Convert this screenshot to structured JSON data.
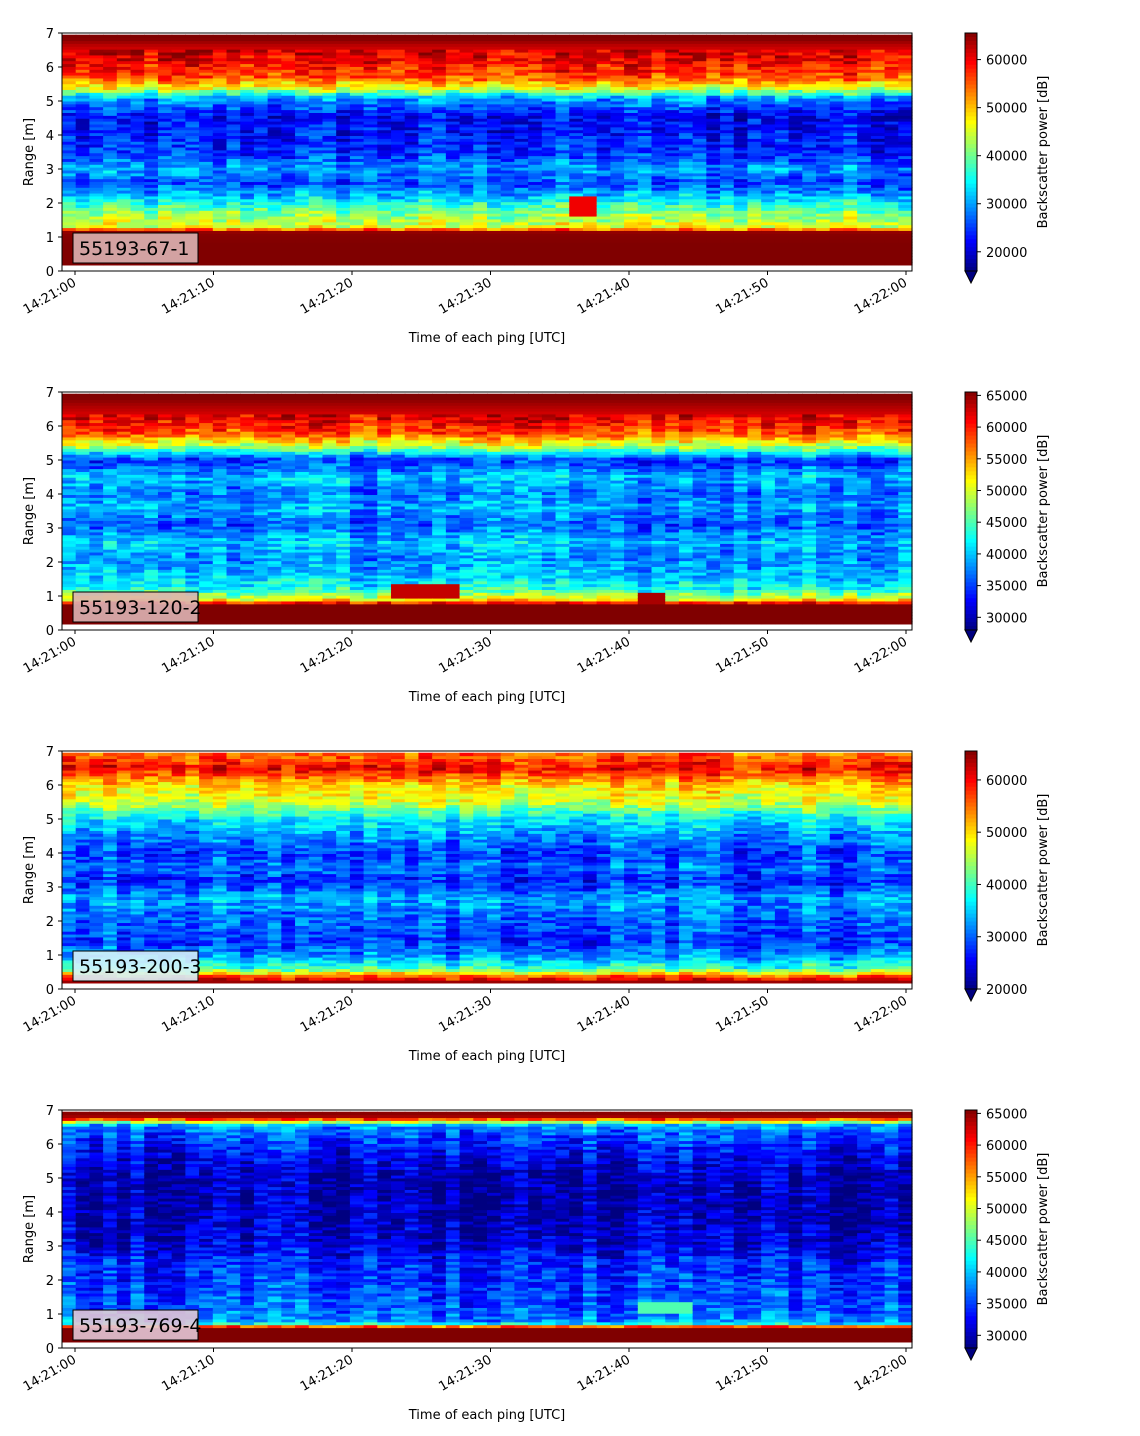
{
  "chart_data": [
    {
      "type": "heatmap",
      "label": "55193-67-1",
      "xlabel": "Time of each ping [UTC]",
      "ylabel": "Range [m]",
      "colorbar_label": "Backscatter power [dB]",
      "x_ticks": [
        "14:21:00",
        "14:21:10",
        "14:21:20",
        "14:21:30",
        "14:21:40",
        "14:21:50",
        "14:22:00"
      ],
      "y_ticks": [
        0,
        1,
        2,
        3,
        4,
        5,
        6,
        7
      ],
      "ylim": [
        0,
        7
      ],
      "clim": [
        16000,
        65535
      ],
      "colorbar_ticks": [
        20000,
        30000,
        40000,
        50000,
        60000
      ],
      "colormap": "jet",
      "label_box_color": "#dbb4b4",
      "profile": [
        {
          "range": 0.25,
          "value": 65535
        },
        {
          "range": 0.8,
          "value": 65535
        },
        {
          "range": 1.15,
          "value": 65000
        },
        {
          "range": 1.3,
          "value": 46000
        },
        {
          "range": 1.7,
          "value": 41000
        },
        {
          "range": 2.1,
          "value": 34000
        },
        {
          "range": 2.6,
          "value": 25000
        },
        {
          "range": 3.0,
          "value": 30000
        },
        {
          "range": 3.5,
          "value": 24000
        },
        {
          "range": 4.0,
          "value": 23000
        },
        {
          "range": 4.6,
          "value": 22000
        },
        {
          "range": 5.1,
          "value": 30000
        },
        {
          "range": 5.35,
          "value": 44000
        },
        {
          "range": 5.7,
          "value": 55000
        },
        {
          "range": 6.2,
          "value": 60000
        },
        {
          "range": 6.6,
          "value": 62000
        },
        {
          "range": 6.85,
          "value": 65535
        }
      ],
      "features": [
        {
          "t0": 35.5,
          "t1": 37.5,
          "r0": 1.6,
          "r1": 2.2,
          "value": 60000
        }
      ]
    },
    {
      "type": "heatmap",
      "label": "55193-120-2",
      "xlabel": "Time of each ping [UTC]",
      "ylabel": "Range [m]",
      "colorbar_label": "Backscatter power [dB]",
      "x_ticks": [
        "14:21:00",
        "14:21:10",
        "14:21:20",
        "14:21:30",
        "14:21:40",
        "14:21:50",
        "14:22:00"
      ],
      "y_ticks": [
        0,
        1,
        2,
        3,
        4,
        5,
        6,
        7
      ],
      "ylim": [
        0,
        7
      ],
      "clim": [
        28000,
        65535
      ],
      "colorbar_ticks": [
        30000,
        35000,
        40000,
        45000,
        50000,
        55000,
        60000,
        65000
      ],
      "colormap": "jet",
      "label_box_color": "#dbb4b4",
      "profile": [
        {
          "range": 0.25,
          "value": 65535
        },
        {
          "range": 0.75,
          "value": 65535
        },
        {
          "range": 0.9,
          "value": 52000
        },
        {
          "range": 1.2,
          "value": 43000
        },
        {
          "range": 1.6,
          "value": 40000
        },
        {
          "range": 2.1,
          "value": 38000
        },
        {
          "range": 2.6,
          "value": 40000
        },
        {
          "range": 3.1,
          "value": 36000
        },
        {
          "range": 3.6,
          "value": 39000
        },
        {
          "range": 4.1,
          "value": 37000
        },
        {
          "range": 4.5,
          "value": 40000
        },
        {
          "range": 5.0,
          "value": 34000
        },
        {
          "range": 5.4,
          "value": 48000
        },
        {
          "range": 5.8,
          "value": 58000
        },
        {
          "range": 6.3,
          "value": 62000
        },
        {
          "range": 6.85,
          "value": 65535
        }
      ],
      "features": [
        {
          "t0": 22.5,
          "t1": 27.5,
          "r0": 0.9,
          "r1": 1.4,
          "value": 63000
        },
        {
          "t0": 40.5,
          "t1": 43.0,
          "r0": 0.8,
          "r1": 1.15,
          "value": 64000
        }
      ]
    },
    {
      "type": "heatmap",
      "label": "55193-200-3",
      "xlabel": "Time of each ping [UTC]",
      "ylabel": "Range [m]",
      "colorbar_label": "Backscatter power [dB]",
      "x_ticks": [
        "14:21:00",
        "14:21:10",
        "14:21:20",
        "14:21:30",
        "14:21:40",
        "14:21:50",
        "14:22:00"
      ],
      "y_ticks": [
        0,
        1,
        2,
        3,
        4,
        5,
        6,
        7
      ],
      "ylim": [
        0,
        7
      ],
      "clim": [
        20000,
        65535
      ],
      "colorbar_ticks": [
        20000,
        30000,
        40000,
        50000,
        60000
      ],
      "colormap": "jet",
      "label_box_color": "#d6f2fa",
      "profile": [
        {
          "range": 0.2,
          "value": 65535
        },
        {
          "range": 0.4,
          "value": 55000
        },
        {
          "range": 0.6,
          "value": 40000
        },
        {
          "range": 1.0,
          "value": 32000
        },
        {
          "range": 1.4,
          "value": 28000
        },
        {
          "range": 2.0,
          "value": 30000
        },
        {
          "range": 2.7,
          "value": 33000
        },
        {
          "range": 3.2,
          "value": 27000
        },
        {
          "range": 3.6,
          "value": 31000
        },
        {
          "range": 4.0,
          "value": 28000
        },
        {
          "range": 4.5,
          "value": 32000
        },
        {
          "range": 5.0,
          "value": 36000
        },
        {
          "range": 5.5,
          "value": 46000
        },
        {
          "range": 6.0,
          "value": 50000
        },
        {
          "range": 6.5,
          "value": 60000
        },
        {
          "range": 6.9,
          "value": 55000
        }
      ],
      "features": []
    },
    {
      "type": "heatmap",
      "label": "55193-769-4",
      "xlabel": "Time of each ping [UTC]",
      "ylabel": "Range [m]",
      "colorbar_label": "Backscatter power [dB]",
      "x_ticks": [
        "14:21:00",
        "14:21:10",
        "14:21:20",
        "14:21:30",
        "14:21:40",
        "14:21:50",
        "14:22:00"
      ],
      "y_ticks": [
        0,
        1,
        2,
        3,
        4,
        5,
        6,
        7
      ],
      "ylim": [
        0,
        7
      ],
      "clim": [
        28000,
        65535
      ],
      "colorbar_ticks": [
        30000,
        35000,
        40000,
        45000,
        50000,
        55000,
        60000,
        65000
      ],
      "colormap": "jet",
      "label_box_color": "#e2c6d6",
      "profile": [
        {
          "range": 0.25,
          "value": 65535
        },
        {
          "range": 0.6,
          "value": 65535
        },
        {
          "range": 0.75,
          "value": 38000
        },
        {
          "range": 1.2,
          "value": 36000
        },
        {
          "range": 1.8,
          "value": 35000
        },
        {
          "range": 2.5,
          "value": 34000
        },
        {
          "range": 3.2,
          "value": 31000
        },
        {
          "range": 4.0,
          "value": 30000
        },
        {
          "range": 5.0,
          "value": 30000
        },
        {
          "range": 5.6,
          "value": 32000
        },
        {
          "range": 6.2,
          "value": 35000
        },
        {
          "range": 6.55,
          "value": 38000
        },
        {
          "range": 6.8,
          "value": 64000
        },
        {
          "range": 6.95,
          "value": 65535
        }
      ],
      "features": [
        {
          "t0": 40.5,
          "t1": 45.0,
          "r0": 1.05,
          "r1": 1.4,
          "value": 45000
        }
      ]
    }
  ]
}
